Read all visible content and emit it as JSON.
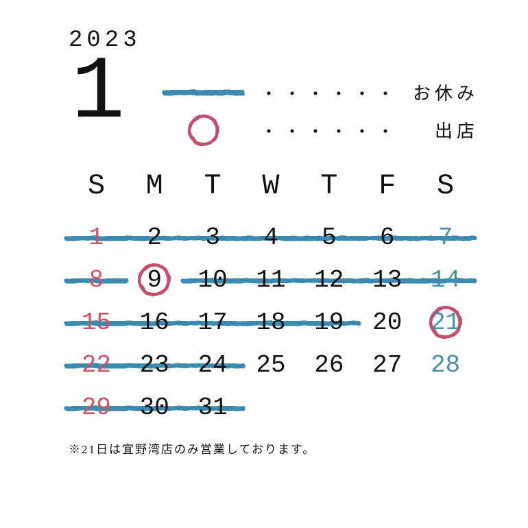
{
  "year": "2023",
  "month": "1",
  "colors": {
    "blue": "#3a8bb0",
    "red": "#c4506a",
    "sunday": "#cc5566",
    "saturday": "#4890a8",
    "text": "#111111",
    "bg": "#ffffff"
  },
  "legend": {
    "dots": "・・・・・・",
    "holiday_label": "お休み",
    "popup_label": "出店"
  },
  "dow": [
    "S",
    "M",
    "T",
    "W",
    "T",
    "F",
    "S"
  ],
  "weeks": [
    [
      {
        "n": "1",
        "c": "sunday"
      },
      {
        "n": "2",
        "c": "text"
      },
      {
        "n": "3",
        "c": "text"
      },
      {
        "n": "4",
        "c": "text"
      },
      {
        "n": "5",
        "c": "text"
      },
      {
        "n": "6",
        "c": "text"
      },
      {
        "n": "7",
        "c": "saturday"
      }
    ],
    [
      {
        "n": "8",
        "c": "sunday"
      },
      {
        "n": "9",
        "c": "text",
        "circled": true
      },
      {
        "n": "10",
        "c": "text"
      },
      {
        "n": "11",
        "c": "text"
      },
      {
        "n": "12",
        "c": "text"
      },
      {
        "n": "13",
        "c": "text"
      },
      {
        "n": "14",
        "c": "saturday"
      }
    ],
    [
      {
        "n": "15",
        "c": "sunday"
      },
      {
        "n": "16",
        "c": "text"
      },
      {
        "n": "17",
        "c": "text"
      },
      {
        "n": "18",
        "c": "text"
      },
      {
        "n": "19",
        "c": "text"
      },
      {
        "n": "20",
        "c": "text"
      },
      {
        "n": "21",
        "c": "saturday",
        "circled": true
      }
    ],
    [
      {
        "n": "22",
        "c": "sunday"
      },
      {
        "n": "23",
        "c": "text"
      },
      {
        "n": "24",
        "c": "text"
      },
      {
        "n": "25",
        "c": "text"
      },
      {
        "n": "26",
        "c": "text"
      },
      {
        "n": "27",
        "c": "text"
      },
      {
        "n": "28",
        "c": "saturday"
      }
    ],
    [
      {
        "n": "29",
        "c": "sunday"
      },
      {
        "n": "30",
        "c": "text"
      },
      {
        "n": "31",
        "c": "text"
      },
      {
        "n": "",
        "c": "text"
      },
      {
        "n": "",
        "c": "text"
      },
      {
        "n": "",
        "c": "text"
      },
      {
        "n": "",
        "c": "text"
      }
    ]
  ],
  "strikes": [
    {
      "row": 0,
      "start": 0,
      "end": 6
    },
    {
      "row": 1,
      "start": 0,
      "end": 0
    },
    {
      "row": 1,
      "start": 2,
      "end": 6,
      "curve": true
    },
    {
      "row": 2,
      "start": 0,
      "end": 2
    },
    {
      "row": 2,
      "start": 3,
      "end": 4
    },
    {
      "row": 3,
      "start": 0,
      "end": 2
    },
    {
      "row": 4,
      "start": 0,
      "end": 2
    }
  ],
  "footnote": "※21日は宜野湾店のみ営業しております。",
  "layout": {
    "cell_width_pct": 14.28,
    "strike_extend_pct": 4
  }
}
